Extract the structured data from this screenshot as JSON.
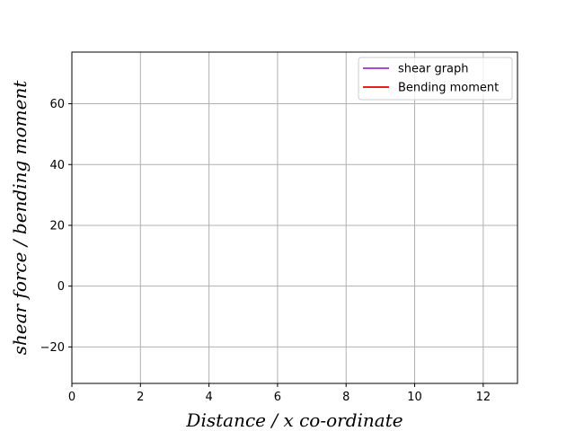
{
  "chart_data": {
    "type": "line",
    "title": "",
    "xlabel": "Distance / x co-ordinate",
    "ylabel": "shear force / bending moment",
    "xlim": [
      0,
      13
    ],
    "ylim": [
      -32,
      77
    ],
    "xticks": [
      0,
      2,
      4,
      6,
      8,
      10,
      12
    ],
    "yticks": [
      -20,
      0,
      20,
      40,
      60
    ],
    "grid": true,
    "legend_position": "top-right",
    "series": [
      {
        "name": "shear graph",
        "color": "#9932cc",
        "x": [],
        "y": []
      },
      {
        "name": "Bending moment",
        "color": "#e00000",
        "x": [],
        "y": []
      }
    ]
  }
}
